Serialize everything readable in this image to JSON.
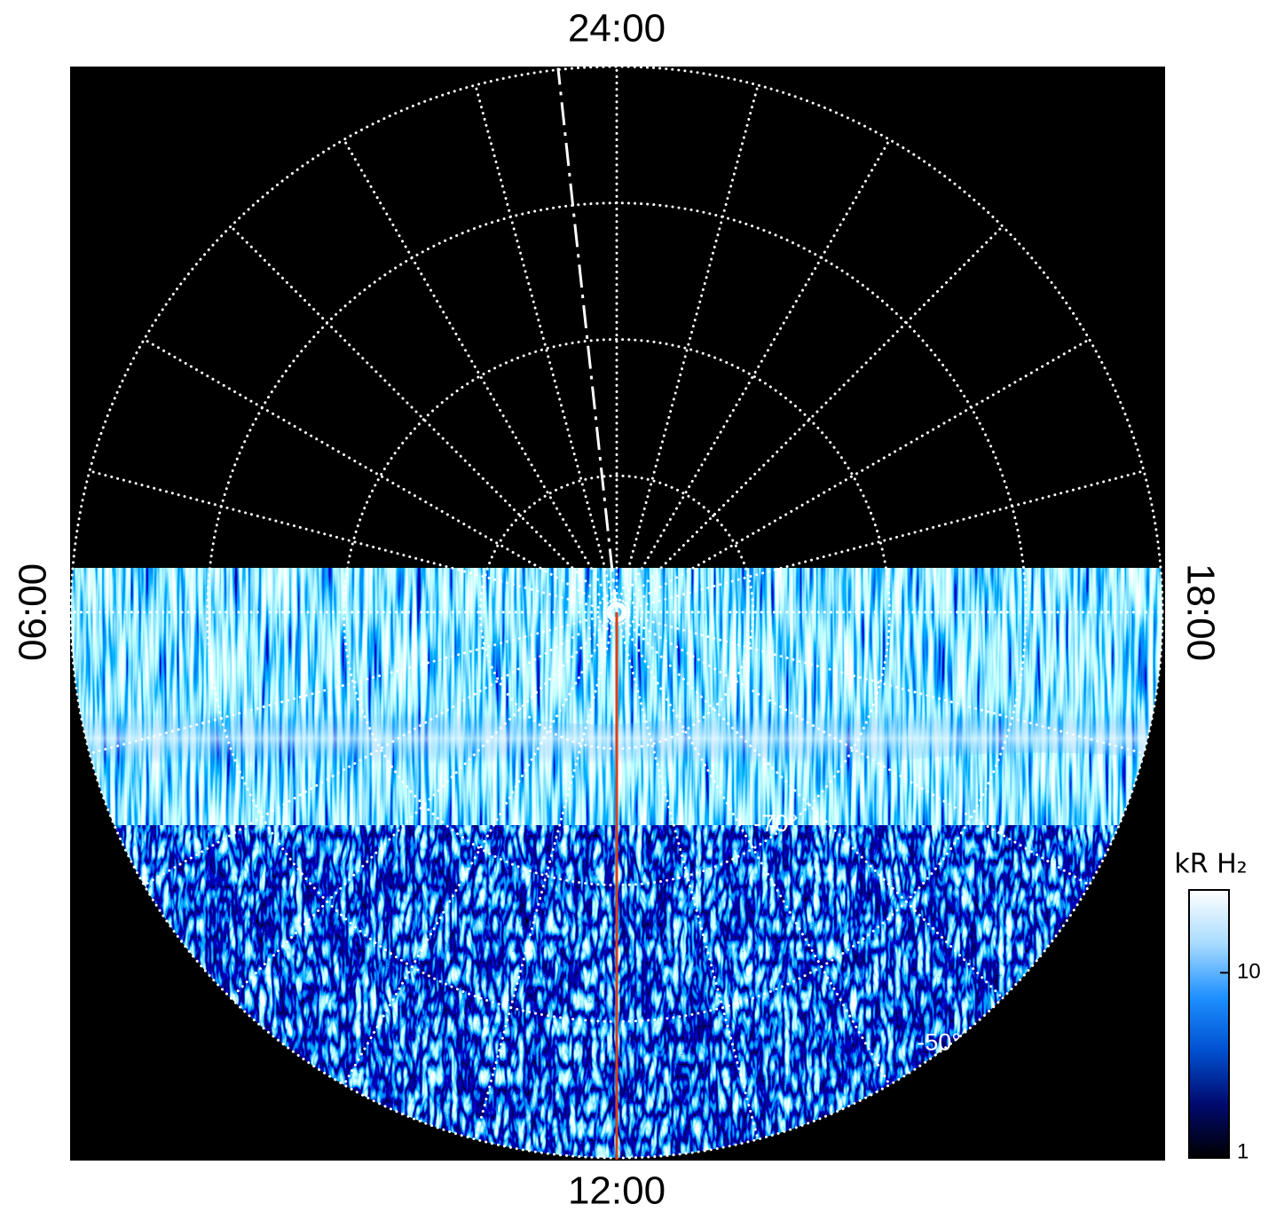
{
  "chart_data": {
    "type": "polar",
    "background": "#000000",
    "rlim": [
      -90,
      -50
    ],
    "rgrid": [
      -80,
      -70,
      -60,
      -50
    ],
    "rlabels": [
      {
        "value": -70,
        "label": "-70°"
      },
      {
        "value": -50,
        "label": "-50°"
      }
    ],
    "hour_grid": [
      0,
      1,
      2,
      3,
      4,
      5,
      6,
      7,
      8,
      9,
      10,
      11,
      12,
      13,
      14,
      15,
      16,
      17,
      18,
      19,
      20,
      21,
      22,
      23
    ],
    "hour_ticks": [
      {
        "value": 0,
        "label": "24:00"
      },
      {
        "value": 6,
        "label": "06:00"
      },
      {
        "value": 12,
        "label": "12:00"
      },
      {
        "value": 18,
        "label": "18:00"
      }
    ],
    "markers": [
      {
        "hour": 0.41,
        "style": "dash",
        "color": "#ffffff"
      },
      {
        "hour": 12,
        "style": "solid",
        "color": "#d8401a"
      }
    ],
    "colorbar": {
      "label": "kR H₂",
      "clim": [
        1,
        28
      ],
      "log": true,
      "ticks": [
        1,
        10
      ],
      "colors": [
        "#000000",
        "#000a6e",
        "#0050d0",
        "#1e90ff",
        "#a8dcff",
        "#ffffff"
      ]
    }
  }
}
